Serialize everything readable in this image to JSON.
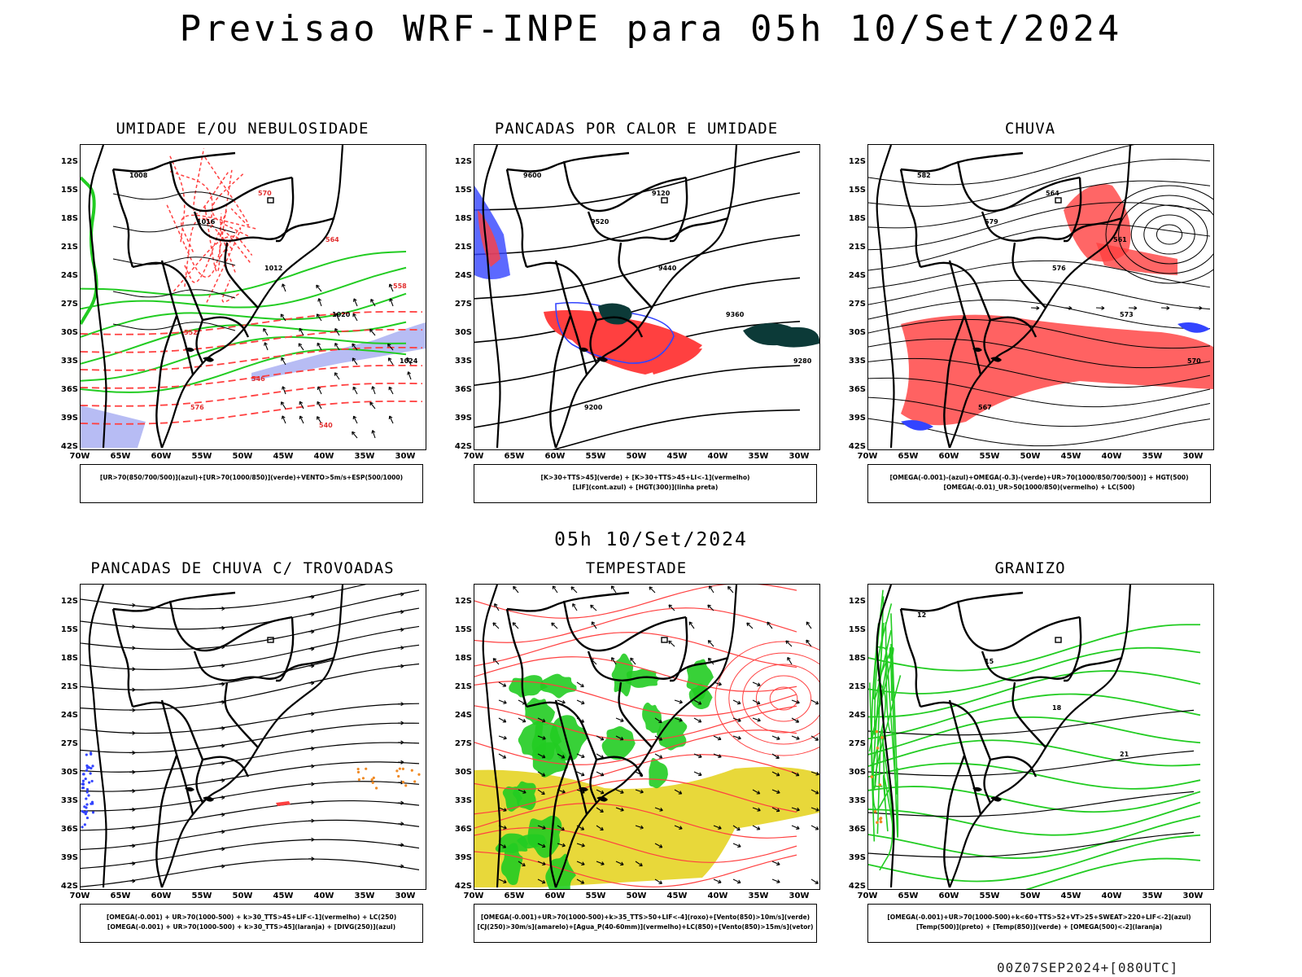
{
  "header": {
    "title": "Previsao WRF-INPE  para 05h 10/Set/2024"
  },
  "middle": {
    "label": "05h 10/Set/2024"
  },
  "footer": {
    "run": "00Z07SEP2024+[080UTC]"
  },
  "lat_ticks": [
    "12S",
    "15S",
    "18S",
    "21S",
    "24S",
    "27S",
    "30S",
    "33S",
    "36S",
    "39S",
    "42S"
  ],
  "lon_ticks": [
    "70W",
    "65W",
    "60W",
    "55W",
    "50W",
    "45W",
    "40W",
    "35W",
    "30W"
  ],
  "colors": {
    "red": "#ff4040",
    "green": "#22cc22",
    "blue": "#3344ff",
    "lavender": "#aab0f2",
    "orange": "#f08a24",
    "yellow": "#e8d83a",
    "darkteal": "#0c3a38"
  },
  "panels": [
    {
      "title": "UMIDADE E/OU NEBULOSIDADE",
      "legend": [
        "[UR>70(850/700/500)](azul)+[UR>70(1000/850)](verde)+VENTO>5m/s+ESP(500/1000)"
      ],
      "contour_labels": [
        "1008",
        "1016",
        "1012",
        "1020",
        "1024",
        "576",
        "570",
        "564",
        "558",
        "552",
        "546",
        "540"
      ]
    },
    {
      "title": "PANCADAS POR CALOR E UMIDADE",
      "legend": [
        "[K>30+TTS>45](verde) + [K>30+TTS>45+LI<-1](vermelho)",
        "[LIF](cont.azul) + [HGT(300)](linha preta)"
      ],
      "contour_labels": [
        "9600",
        "9520",
        "9440",
        "9360",
        "9280",
        "9200",
        "9120"
      ]
    },
    {
      "title": "CHUVA",
      "legend": [
        "[OMEGA(-0.001)-(azul)+OMEGA(-0.3)-(verde)+UR>70(1000/850/700/500)] + HGT(500)",
        "[OMEGA(-0.01)_UR>50(1000/850)(vermelho) + LC(500)"
      ],
      "contour_labels": [
        "582",
        "579",
        "576",
        "573",
        "570",
        "567",
        "564",
        "561"
      ]
    },
    {
      "title": "PANCADAS DE CHUVA C/ TROVOADAS",
      "legend": [
        "[OMEGA(-0.001) + UR>70(1000-500) + k>30_TTS>45+LIF<-1](vermelho) + LC(250)",
        "[OMEGA(-0.001) + UR>70(1000-500) + k>30_TTS>45](laranja) + [DIVG(250)](azul)"
      ],
      "contour_labels": []
    },
    {
      "title": "TEMPESTADE",
      "legend": [
        "[OMEGA(-0.001)+UR>70(1000-500)+k>35_TTS>50+LIF<-4](roxo)+[Vento(850)>10m/s](verde)",
        "[CJ(250)>30m/s](amarelo)+[Agua_P(40-60mm)](vermelho)+LC(850)+[Vento(850)>15m/s](vetor)"
      ],
      "contour_labels": []
    },
    {
      "title": "GRANIZO",
      "legend": [
        "[OMEGA(-0.001)+UR>70(1000-500)+k<60+TTS>52+VT>25+SWEAT>220+LIF<-2](azul)",
        "[Temp(500)](preto) + [Temp(850)](verde) + [OMEGA(500)<-2](laranja)"
      ],
      "contour_labels": [
        "12",
        "15",
        "18",
        "21"
      ]
    }
  ]
}
